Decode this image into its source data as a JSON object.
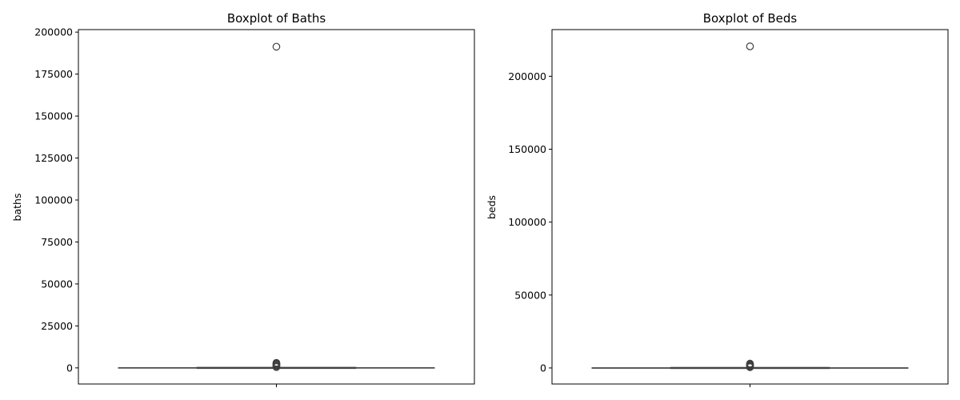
{
  "chart_data": [
    {
      "type": "boxplot",
      "title": "Boxplot of Baths",
      "xlabel": "",
      "ylabel": "baths",
      "ylim": [
        -9600,
        201500
      ],
      "yticks": [
        0,
        25000,
        50000,
        75000,
        100000,
        125000,
        150000,
        175000,
        200000
      ],
      "box": {
        "q1": 0,
        "median": 0,
        "q3": 0,
        "whisker_low": 0,
        "whisker_high": 0
      },
      "outliers": [
        191300,
        3000,
        2500,
        2000,
        1500,
        1000,
        500
      ],
      "colors": {
        "box": "#444444",
        "outlier_edge": "#3d3d3d"
      }
    },
    {
      "type": "boxplot",
      "title": "Boxplot of Beds",
      "xlabel": "",
      "ylabel": "beds",
      "ylim": [
        -11000,
        232000
      ],
      "yticks": [
        0,
        50000,
        100000,
        150000,
        200000
      ],
      "box": {
        "q1": 0,
        "median": 0,
        "q3": 0,
        "whisker_low": 0,
        "whisker_high": 0
      },
      "outliers": [
        220500,
        3000,
        2500,
        2000,
        1500,
        1000,
        500
      ],
      "colors": {
        "box": "#444444",
        "outlier_edge": "#3d3d3d"
      }
    }
  ]
}
